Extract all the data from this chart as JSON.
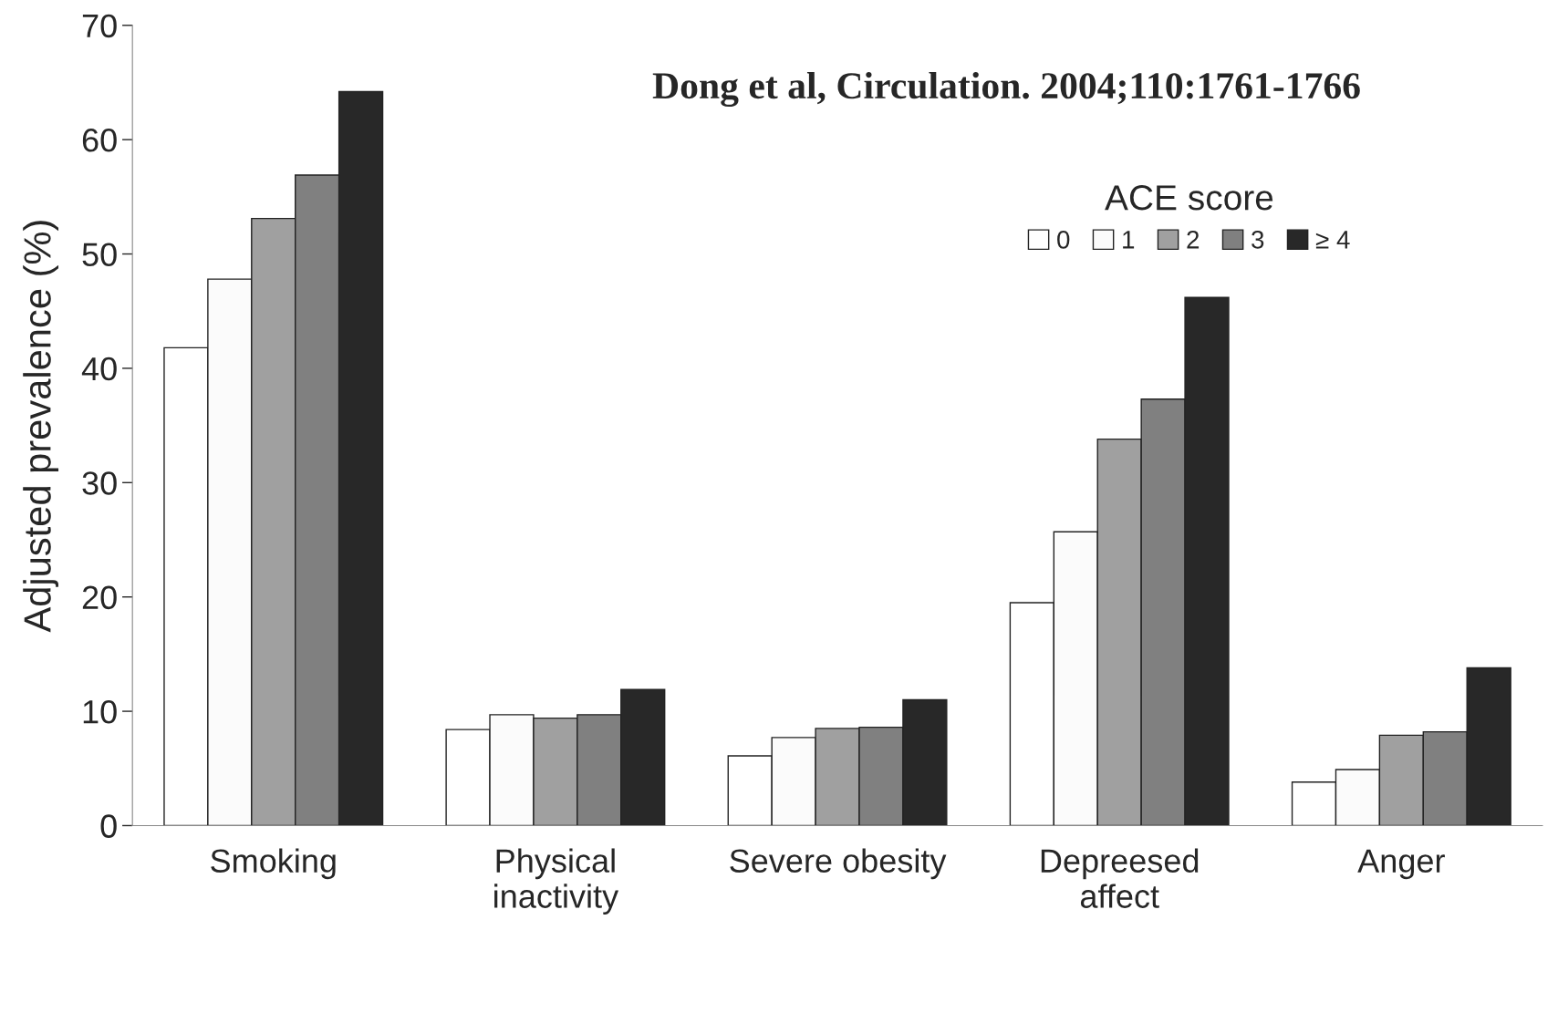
{
  "chart_data": {
    "type": "bar",
    "ylabel": "Adjusted prevalence (%)",
    "legend_title": "ACE score",
    "categories": [
      "Smoking",
      "Physical\ninactivity",
      "Severe obesity",
      "Depreesed\naffect",
      "Anger"
    ],
    "series": [
      {
        "name": "0",
        "color": "#ffffff",
        "values": [
          41.8,
          8.4,
          6.1,
          19.5,
          3.8
        ]
      },
      {
        "name": "1",
        "color": "#fbfbfb",
        "values": [
          47.8,
          9.7,
          7.7,
          25.7,
          4.9
        ]
      },
      {
        "name": "2",
        "color": "#a0a0a0",
        "values": [
          53.1,
          9.4,
          8.5,
          33.8,
          7.9
        ]
      },
      {
        "name": "3",
        "color": "#808080",
        "values": [
          56.9,
          9.7,
          8.6,
          37.3,
          8.2
        ]
      },
      {
        "name": "≥ 4",
        "color": "#282828",
        "values": [
          64.2,
          11.9,
          11.0,
          46.2,
          13.8
        ]
      }
    ],
    "ylim": [
      0,
      70
    ],
    "yticks": [
      0,
      10,
      20,
      30,
      40,
      50,
      60,
      70
    ],
    "grid": false,
    "legend": "top right",
    "annotations": [
      "Dong et al, Circulation. 2004;110:1761-1766"
    ]
  }
}
